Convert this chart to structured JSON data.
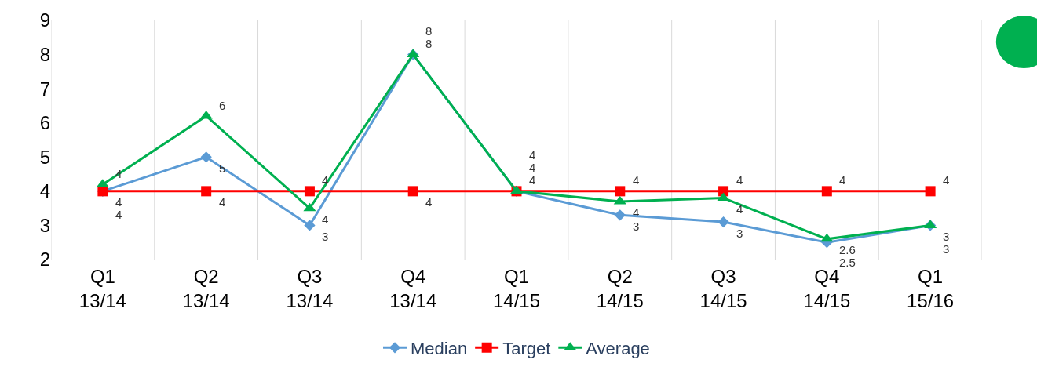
{
  "chart_data": {
    "type": "line",
    "categories": [
      "Q1\n13/14",
      "Q2\n13/14",
      "Q3\n13/14",
      "Q4\n13/14",
      "Q1\n14/15",
      "Q2\n14/15",
      "Q3\n14/15",
      "Q4\n14/15",
      "Q1\n15/16"
    ],
    "series": [
      {
        "name": "Median",
        "color": "#5b9bd5",
        "marker": "diamond",
        "values": [
          4,
          5,
          3,
          8,
          4,
          3.3,
          3.1,
          2.5,
          3
        ],
        "value_labels": [
          "4",
          "5",
          "3",
          "8",
          "4",
          "3",
          "3",
          "2.5",
          "3"
        ]
      },
      {
        "name": "Target",
        "color": "#ff0000",
        "marker": "square",
        "values": [
          4,
          4,
          4,
          4,
          4,
          4,
          4,
          4,
          4
        ],
        "value_labels": [
          "4",
          "4",
          "4",
          "4",
          "4",
          "4",
          "4",
          "4",
          "4"
        ]
      },
      {
        "name": "Average",
        "color": "#00b050",
        "marker": "triangle",
        "values": [
          4.2,
          6.2,
          3.5,
          8,
          4,
          3.7,
          3.8,
          2.6,
          3
        ],
        "value_labels": [
          "4",
          "6",
          "4",
          "8",
          "4",
          "4",
          "4",
          "2.6",
          "3"
        ]
      }
    ],
    "ylim": [
      2,
      9
    ],
    "yticks": [
      2,
      3,
      4,
      5,
      6,
      7,
      8,
      9
    ],
    "grid": "x",
    "legend": "bottom"
  }
}
